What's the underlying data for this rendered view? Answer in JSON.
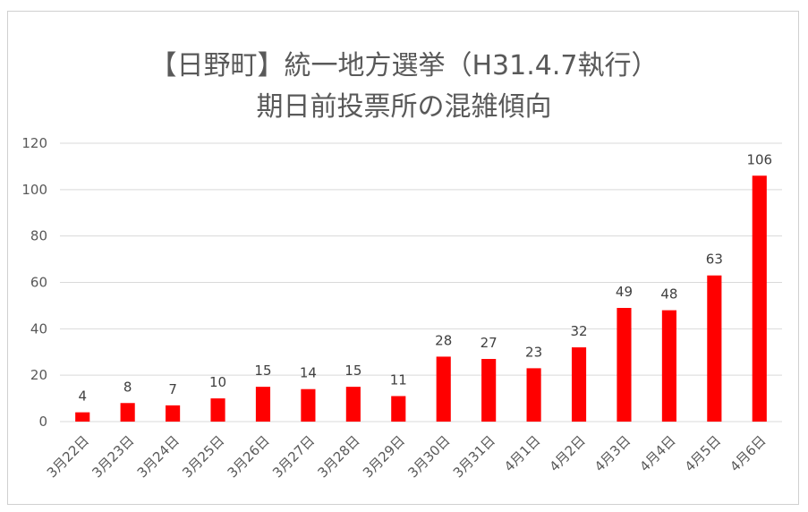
{
  "chart_data": {
    "type": "bar",
    "title": "【日野町】統一地方選挙（H31.4.7執行）\n期日前投票所の混雑傾向",
    "categories": [
      "3月22日",
      "3月23日",
      "3月24日",
      "3月25日",
      "3月26日",
      "3月27日",
      "3月28日",
      "3月29日",
      "3月30日",
      "3月31日",
      "4月1日",
      "4月2日",
      "4月3日",
      "4月4日",
      "4月5日",
      "4月6日"
    ],
    "values": [
      4,
      8,
      7,
      10,
      15,
      14,
      15,
      11,
      28,
      27,
      23,
      32,
      49,
      48,
      63,
      106
    ],
    "ylim": [
      0,
      120
    ],
    "yticks": [
      0,
      20,
      40,
      60,
      80,
      100,
      120
    ],
    "grid": true,
    "data_labels": true,
    "bar_color": "#ff0000",
    "grid_color": "#d9d9d9"
  }
}
